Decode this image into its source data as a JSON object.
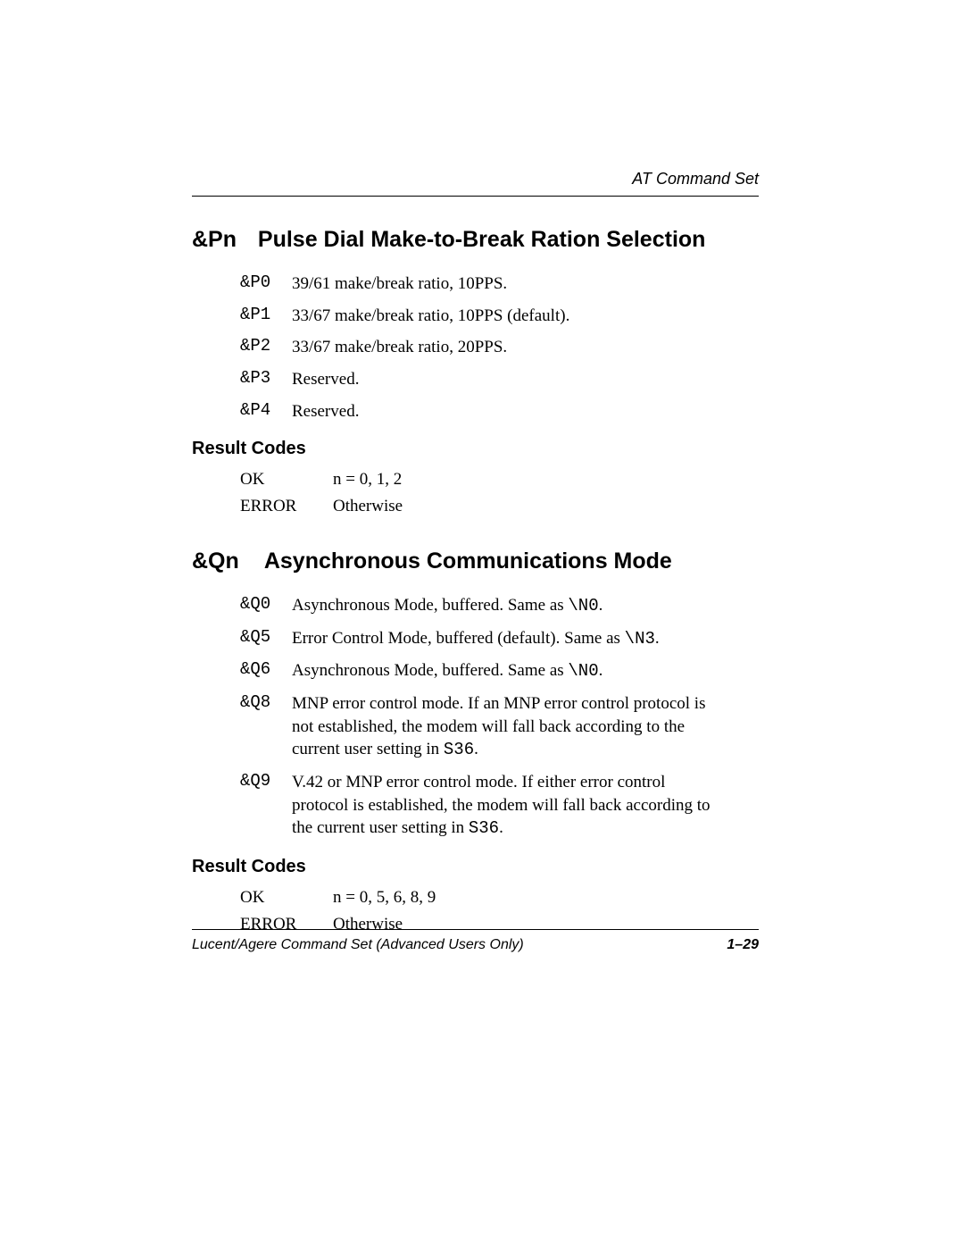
{
  "header": {
    "right": "AT Command Set"
  },
  "sections": [
    {
      "title_cmd": "&Pn",
      "title_text": "Pulse Dial Make-to-Break Ration Selection",
      "params": [
        {
          "code": "&P0",
          "desc": "39/61 make/break ratio, 10PPS."
        },
        {
          "code": "&P1",
          "desc": "33/67 make/break ratio, 10PPS (default)."
        },
        {
          "code": "&P2",
          "desc": "33/67 make/break ratio, 20PPS."
        },
        {
          "code": "&P3",
          "desc": "Reserved."
        },
        {
          "code": "&P4",
          "desc": "Reserved."
        }
      ],
      "result_heading": "Result Codes",
      "results": [
        {
          "code": "OK",
          "desc": "n = 0, 1, 2"
        },
        {
          "code": "ERROR",
          "desc": "Otherwise"
        }
      ]
    },
    {
      "title_cmd": "&Qn",
      "title_text": "Asynchronous Communications Mode",
      "params": [
        {
          "code": "&Q0",
          "desc": "Asynchronous Mode, buffered. Same as ",
          "mono_tail": "\\N0",
          "tail": "."
        },
        {
          "code": "&Q5",
          "desc": "Error Control Mode, buffered (default). Same as ",
          "mono_tail": "\\N3",
          "tail": "."
        },
        {
          "code": "&Q6",
          "desc": "Asynchronous Mode, buffered. Same as ",
          "mono_tail": "\\N0",
          "tail": "."
        },
        {
          "code": "&Q8",
          "desc": "MNP error control mode. If an MNP error control protocol is not established, the modem will fall back according to the current user setting in ",
          "mono_tail": "S36",
          "tail": "."
        },
        {
          "code": "&Q9",
          "desc": "V.42 or MNP error control mode. If either error control protocol is established, the modem will fall back according to the current user setting in ",
          "mono_tail": "S36",
          "tail": "."
        }
      ],
      "result_heading": "Result Codes",
      "results": [
        {
          "code": "OK",
          "desc": "n = 0, 5, 6, 8, 9"
        },
        {
          "code": "ERROR",
          "desc": "Otherwise"
        }
      ]
    }
  ],
  "footer": {
    "left": "Lucent/Agere Command Set (Advanced Users Only)",
    "page": "1–29"
  }
}
